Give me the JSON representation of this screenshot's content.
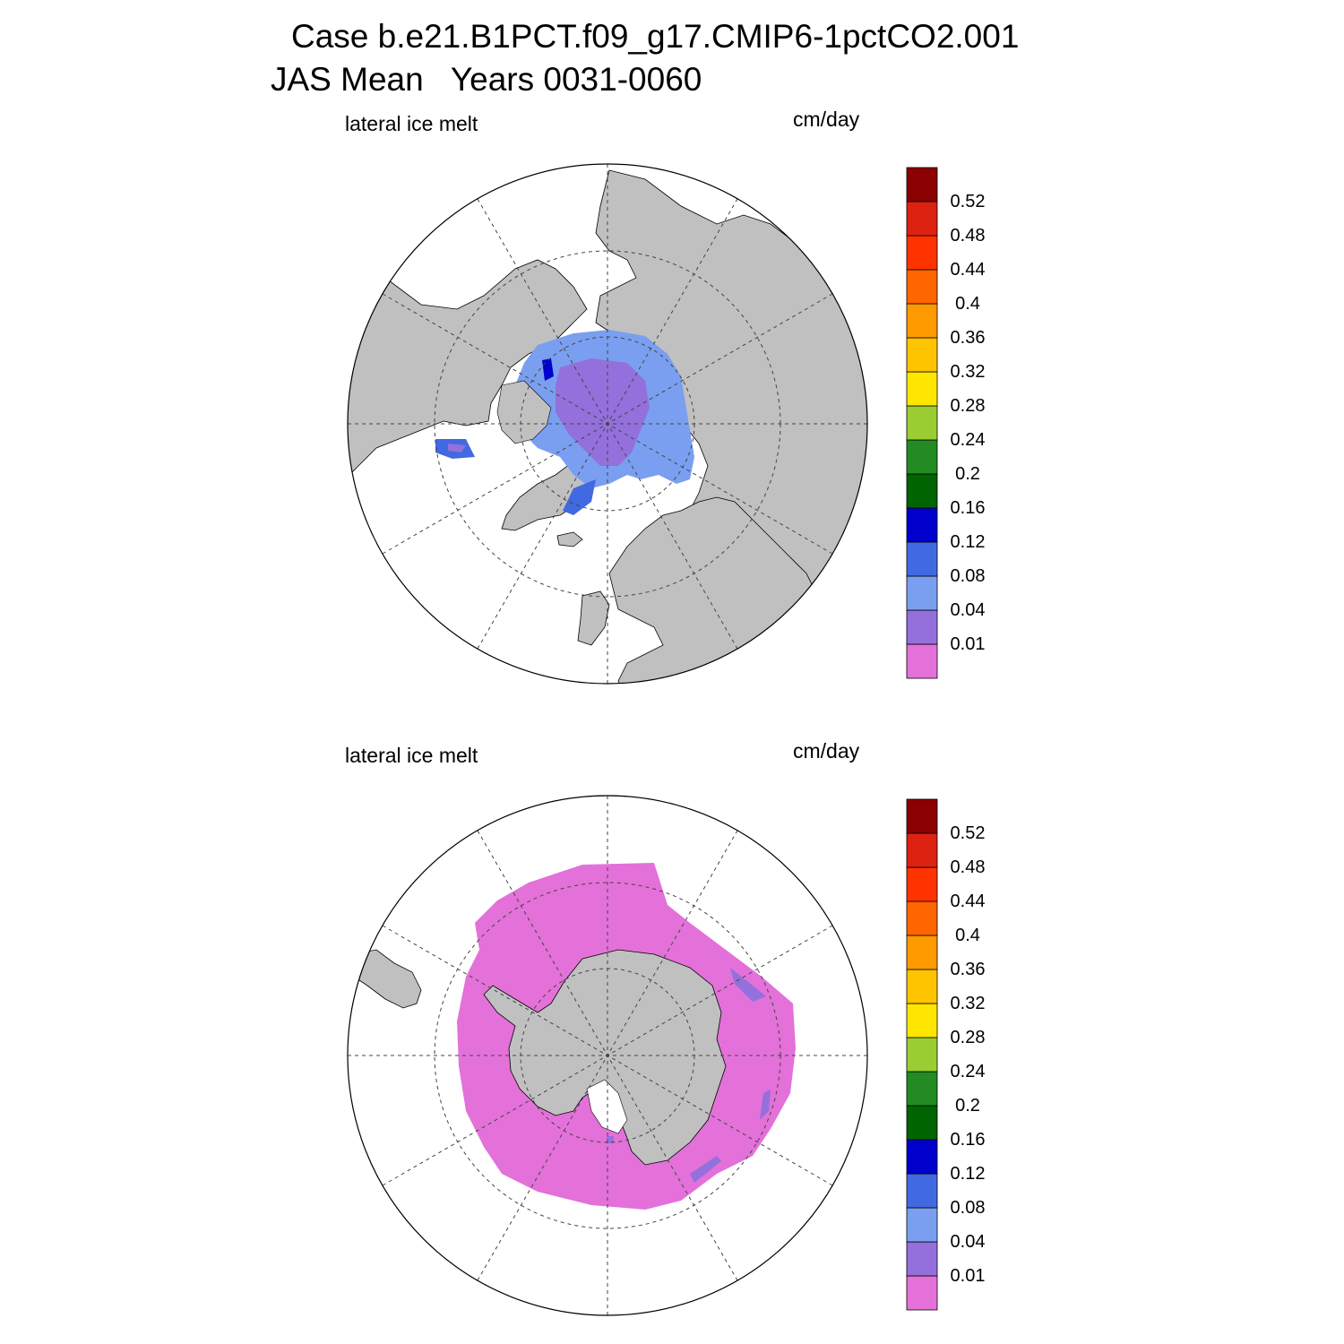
{
  "title": {
    "line1": "Case b.e21.B1PCT.f09_g17.CMIP6-1pctCO2.001",
    "line2": "JAS Mean   Years 0031-0060"
  },
  "panels": [
    {
      "id": "north",
      "hemisphere": "Northern Hemisphere polar stereographic",
      "variable_label": "lateral ice melt",
      "units_label": "cm/day",
      "colors": {
        "ocean": "#ffffff",
        "land": "#c0c0c0"
      }
    },
    {
      "id": "south",
      "hemisphere": "Southern Hemisphere polar stereographic",
      "variable_label": "lateral ice melt",
      "units_label": "cm/day",
      "colors": {
        "ocean": "#ffffff",
        "land": "#c0c0c0"
      }
    }
  ],
  "colorbar": {
    "levels": [
      "0.01",
      "0.04",
      "0.08",
      "0.12",
      "0.16",
      "0.2",
      "0.24",
      "0.28",
      "0.32",
      "0.36",
      "0.4",
      "0.44",
      "0.48",
      "0.52"
    ],
    "colors": [
      "#e371d9",
      "#9370db",
      "#7a9ff0",
      "#4169e1",
      "#0000cd",
      "#006400",
      "#228b22",
      "#9acd32",
      "#ffe600",
      "#ffc400",
      "#ff9900",
      "#ff6600",
      "#ff3300",
      "#dd2211",
      "#8b0000"
    ]
  }
}
